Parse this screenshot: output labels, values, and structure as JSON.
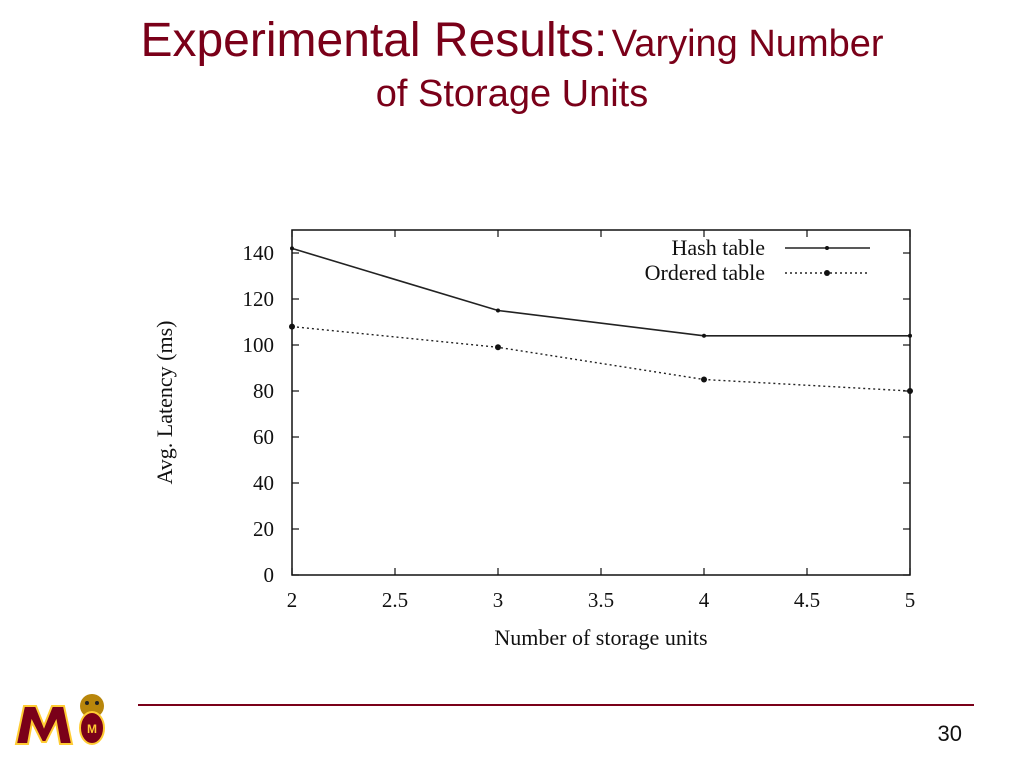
{
  "slide": {
    "title_main": "Experimental Results:",
    "title_sub_1": "Varying Number",
    "title_sub_2": "of Storage Units",
    "page_number": "30",
    "accent_color": "#7a0019",
    "logo_icon": "university-m-mascot-logo"
  },
  "chart_data": {
    "type": "line",
    "title": "",
    "xlabel": "Number of storage units",
    "ylabel": "Avg. Latency (ms)",
    "xlim": [
      2,
      5
    ],
    "ylim": [
      0,
      150
    ],
    "x_ticks": [
      2,
      2.5,
      3,
      3.5,
      4,
      4.5,
      5
    ],
    "y_ticks": [
      0,
      20,
      40,
      60,
      80,
      100,
      120,
      140
    ],
    "grid": false,
    "legend_position": "top-right",
    "x": [
      2,
      3,
      4,
      5
    ],
    "series": [
      {
        "name": "Hash table",
        "values": [
          142,
          115,
          104,
          104
        ],
        "style": "solid",
        "marker": "dot"
      },
      {
        "name": "Ordered table",
        "values": [
          108,
          99,
          85,
          80
        ],
        "style": "dotted",
        "marker": "dot"
      }
    ]
  }
}
